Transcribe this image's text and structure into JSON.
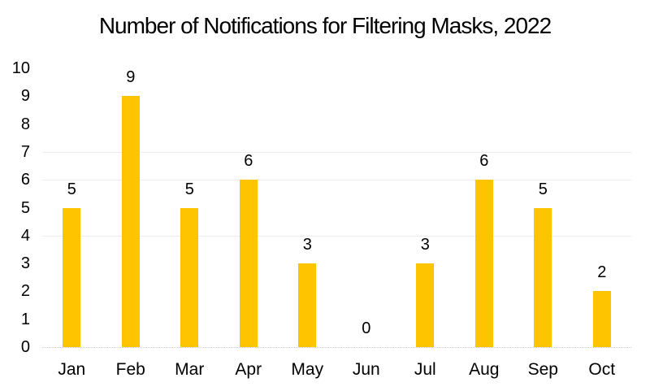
{
  "title": "Number of Notifications for Filtering Masks, 2022",
  "chart_data": {
    "type": "bar",
    "title": "Number of Notifications for Filtering Masks, 2022",
    "categories": [
      "Jan",
      "Feb",
      "Mar",
      "Apr",
      "May",
      "Jun",
      "Jul",
      "Aug",
      "Sep",
      "Oct"
    ],
    "values": [
      5,
      9,
      5,
      6,
      3,
      0,
      3,
      6,
      5,
      2
    ],
    "data_labels_shown": true,
    "xlabel": "",
    "ylabel": "",
    "ylim": [
      0,
      10
    ],
    "yticks": [
      0,
      1,
      2,
      3,
      4,
      5,
      6,
      7,
      8,
      9,
      10
    ],
    "visible_gridline_values": [
      4,
      6,
      7
    ],
    "baseline_style": "dotted",
    "legend": "none",
    "colors": {
      "bar": "#FFC400",
      "gridline": "#ececec",
      "baseline": "#cfcfcf",
      "text": "#000000",
      "background": "#ffffff"
    }
  }
}
